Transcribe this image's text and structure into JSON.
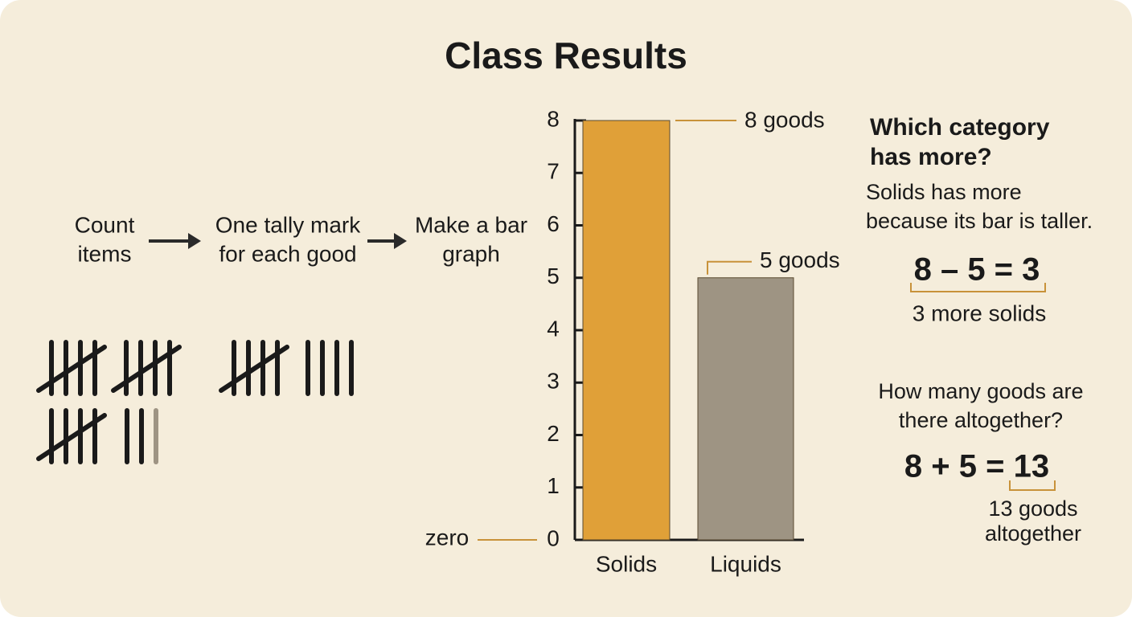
{
  "chart_data": {
    "type": "bar",
    "title": "Class Results",
    "categories": [
      "Solids",
      "Liquids"
    ],
    "values": [
      8,
      5
    ],
    "value_labels": [
      "8 goods",
      "5 goods"
    ],
    "colors": [
      "#e0a038",
      "#9e9483"
    ],
    "ylim": [
      0,
      8
    ],
    "yticks": [
      0,
      1,
      2,
      3,
      4,
      5,
      6,
      7,
      8
    ],
    "zero_note": "zero",
    "steps": [
      [
        "Count",
        "items"
      ],
      [
        "One tally mark",
        "for each good"
      ],
      [
        "Make a bar",
        "graph"
      ]
    ],
    "question_more": {
      "heading": [
        "Which category",
        "has more?"
      ],
      "answer": [
        "Solids has more",
        "because its bar is taller."
      ],
      "equation": "8 – 5 = 3",
      "result": "3 more solids"
    },
    "question_total": {
      "heading": [
        "How many goods are",
        "there altogether?"
      ],
      "equation": "8 + 5 = 13",
      "result": [
        "13 goods",
        "altogether"
      ]
    }
  }
}
